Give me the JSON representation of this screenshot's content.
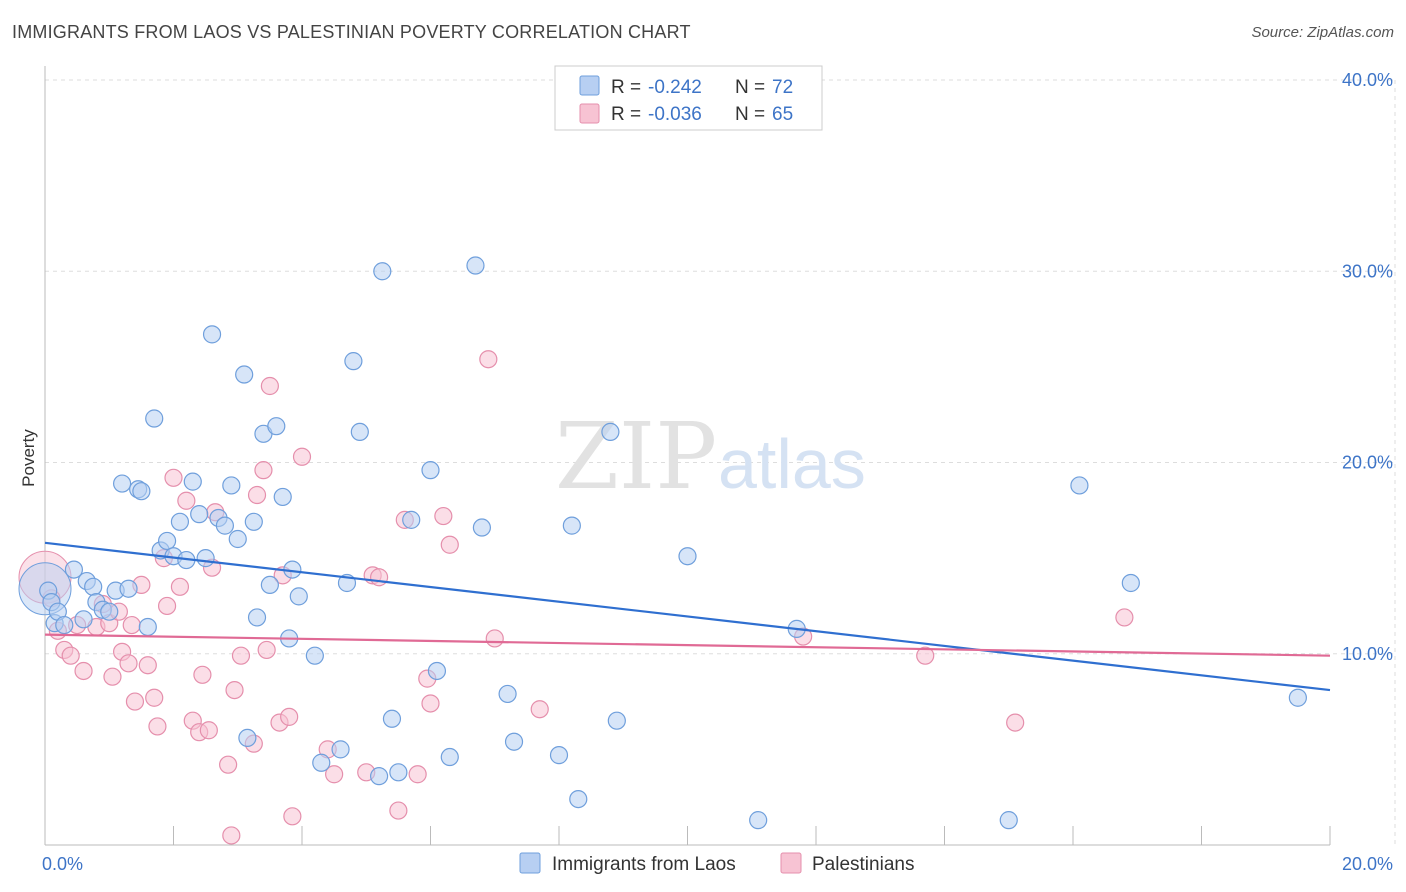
{
  "title": "IMMIGRANTS FROM LAOS VS PALESTINIAN POVERTY CORRELATION CHART",
  "source": "Source: ZipAtlas.com",
  "watermark": {
    "zip": "ZIP",
    "atlas": "atlas"
  },
  "colors": {
    "blue_fill": "#b7cff2",
    "blue_stroke": "#6f9fdc",
    "blue_line": "#2f6fd0",
    "pink_fill": "#f7c3d3",
    "pink_stroke": "#e58fac",
    "pink_line": "#e06a95",
    "tick_label": "#3d74c7",
    "grid": "#dddddd"
  },
  "legend": {
    "rows": [
      {
        "r_label": "R =",
        "r_value": "-0.242",
        "n_label": "N =",
        "n_value": "72",
        "color": "blue"
      },
      {
        "r_label": "R =",
        "r_value": "-0.036",
        "n_label": "N =",
        "n_value": "65",
        "color": "pink"
      }
    ]
  },
  "chart_data": {
    "type": "scatter",
    "title": "IMMIGRANTS FROM LAOS VS PALESTINIAN POVERTY CORRELATION CHART",
    "xlabel": "",
    "ylabel": "Poverty",
    "xlim": [
      0,
      20
    ],
    "ylim": [
      0,
      40
    ],
    "x_tick_labels": [
      "0.0%",
      "20.0%"
    ],
    "y_ticks": [
      10,
      20,
      30,
      40
    ],
    "y_tick_labels": [
      "10.0%",
      "20.0%",
      "30.0%",
      "40.0%"
    ],
    "grid": true,
    "legend_position": "top-center",
    "series": [
      {
        "name": "Immigrants from Laos",
        "color": "blue",
        "trend": {
          "x": [
            0,
            20
          ],
          "y": [
            15.8,
            8.1
          ]
        },
        "points": [
          [
            0.05,
            13.3
          ],
          [
            0.1,
            12.7
          ],
          [
            0.15,
            11.6
          ],
          [
            0.2,
            12.2
          ],
          [
            0.3,
            11.5
          ],
          [
            0.45,
            14.4
          ],
          [
            0.6,
            11.8
          ],
          [
            0.65,
            13.8
          ],
          [
            0.75,
            13.5
          ],
          [
            0.8,
            12.7
          ],
          [
            0.9,
            12.3
          ],
          [
            1.0,
            12.2
          ],
          [
            1.1,
            13.3
          ],
          [
            1.2,
            18.9
          ],
          [
            1.3,
            13.4
          ],
          [
            1.45,
            18.6
          ],
          [
            1.5,
            18.5
          ],
          [
            1.6,
            11.4
          ],
          [
            1.7,
            22.3
          ],
          [
            1.8,
            15.4
          ],
          [
            1.9,
            15.9
          ],
          [
            2.0,
            15.1
          ],
          [
            2.1,
            16.9
          ],
          [
            2.2,
            14.9
          ],
          [
            2.3,
            19.0
          ],
          [
            2.4,
            17.3
          ],
          [
            2.5,
            15.0
          ],
          [
            2.6,
            26.7
          ],
          [
            2.7,
            17.1
          ],
          [
            2.8,
            16.7
          ],
          [
            2.9,
            18.8
          ],
          [
            3.0,
            16.0
          ],
          [
            3.1,
            24.6
          ],
          [
            3.15,
            5.6
          ],
          [
            3.25,
            16.9
          ],
          [
            3.3,
            11.9
          ],
          [
            3.4,
            21.5
          ],
          [
            3.5,
            13.6
          ],
          [
            3.6,
            21.9
          ],
          [
            3.7,
            18.2
          ],
          [
            3.8,
            10.8
          ],
          [
            3.85,
            14.4
          ],
          [
            3.95,
            13.0
          ],
          [
            4.2,
            9.9
          ],
          [
            4.3,
            4.3
          ],
          [
            4.6,
            5.0
          ],
          [
            4.7,
            13.7
          ],
          [
            4.8,
            25.3
          ],
          [
            4.9,
            21.6
          ],
          [
            5.2,
            3.6
          ],
          [
            5.25,
            30.0
          ],
          [
            5.4,
            6.6
          ],
          [
            5.5,
            3.8
          ],
          [
            5.7,
            17.0
          ],
          [
            6.0,
            19.6
          ],
          [
            6.1,
            9.1
          ],
          [
            6.3,
            4.6
          ],
          [
            6.7,
            30.3
          ],
          [
            6.8,
            16.6
          ],
          [
            7.2,
            7.9
          ],
          [
            7.3,
            5.4
          ],
          [
            8.0,
            4.7
          ],
          [
            8.2,
            16.7
          ],
          [
            8.3,
            2.4
          ],
          [
            8.8,
            21.6
          ],
          [
            8.9,
            6.5
          ],
          [
            10.0,
            15.1
          ],
          [
            11.1,
            1.3
          ],
          [
            11.7,
            11.3
          ],
          [
            15.0,
            1.3
          ],
          [
            16.1,
            18.8
          ],
          [
            16.9,
            13.7
          ],
          [
            19.5,
            7.7
          ]
        ],
        "big_point": [
          0.0,
          13.4
        ]
      },
      {
        "name": "Palestinians",
        "color": "pink",
        "trend": {
          "x": [
            0,
            20
          ],
          "y": [
            11.0,
            9.9
          ]
        },
        "points": [
          [
            0.1,
            12.9
          ],
          [
            0.2,
            11.2
          ],
          [
            0.3,
            10.2
          ],
          [
            0.4,
            9.9
          ],
          [
            0.5,
            11.5
          ],
          [
            0.6,
            9.1
          ],
          [
            0.8,
            11.4
          ],
          [
            0.9,
            12.6
          ],
          [
            1.0,
            11.6
          ],
          [
            1.05,
            8.8
          ],
          [
            1.15,
            12.2
          ],
          [
            1.2,
            10.1
          ],
          [
            1.3,
            9.5
          ],
          [
            1.35,
            11.5
          ],
          [
            1.4,
            7.5
          ],
          [
            1.5,
            13.6
          ],
          [
            1.6,
            9.4
          ],
          [
            1.7,
            7.7
          ],
          [
            1.75,
            6.2
          ],
          [
            1.85,
            15.0
          ],
          [
            1.9,
            12.5
          ],
          [
            2.0,
            19.2
          ],
          [
            2.1,
            13.5
          ],
          [
            2.2,
            18.0
          ],
          [
            2.3,
            6.5
          ],
          [
            2.4,
            5.9
          ],
          [
            2.45,
            8.9
          ],
          [
            2.55,
            6.0
          ],
          [
            2.6,
            14.5
          ],
          [
            2.65,
            17.4
          ],
          [
            2.85,
            4.2
          ],
          [
            2.9,
            0.5
          ],
          [
            2.95,
            8.1
          ],
          [
            3.05,
            9.9
          ],
          [
            3.25,
            5.3
          ],
          [
            3.3,
            18.3
          ],
          [
            3.4,
            19.6
          ],
          [
            3.45,
            10.2
          ],
          [
            3.5,
            24.0
          ],
          [
            3.65,
            6.4
          ],
          [
            3.7,
            14.1
          ],
          [
            3.8,
            6.7
          ],
          [
            3.85,
            1.5
          ],
          [
            4.0,
            20.3
          ],
          [
            4.4,
            5.0
          ],
          [
            4.5,
            3.7
          ],
          [
            5.0,
            3.8
          ],
          [
            5.1,
            14.1
          ],
          [
            5.2,
            14.0
          ],
          [
            5.5,
            1.8
          ],
          [
            5.6,
            17.0
          ],
          [
            5.8,
            3.7
          ],
          [
            5.95,
            8.7
          ],
          [
            6.0,
            7.4
          ],
          [
            6.2,
            17.2
          ],
          [
            6.3,
            15.7
          ],
          [
            6.9,
            25.4
          ],
          [
            7.0,
            10.8
          ],
          [
            7.7,
            7.1
          ],
          [
            11.8,
            10.9
          ],
          [
            13.7,
            9.9
          ],
          [
            15.1,
            6.4
          ],
          [
            16.8,
            11.9
          ]
        ],
        "big_point": [
          0.0,
          14.0
        ]
      }
    ]
  },
  "bottom_legend": [
    {
      "label": "Immigrants from Laos",
      "color": "blue"
    },
    {
      "label": "Palestinians",
      "color": "pink"
    }
  ]
}
